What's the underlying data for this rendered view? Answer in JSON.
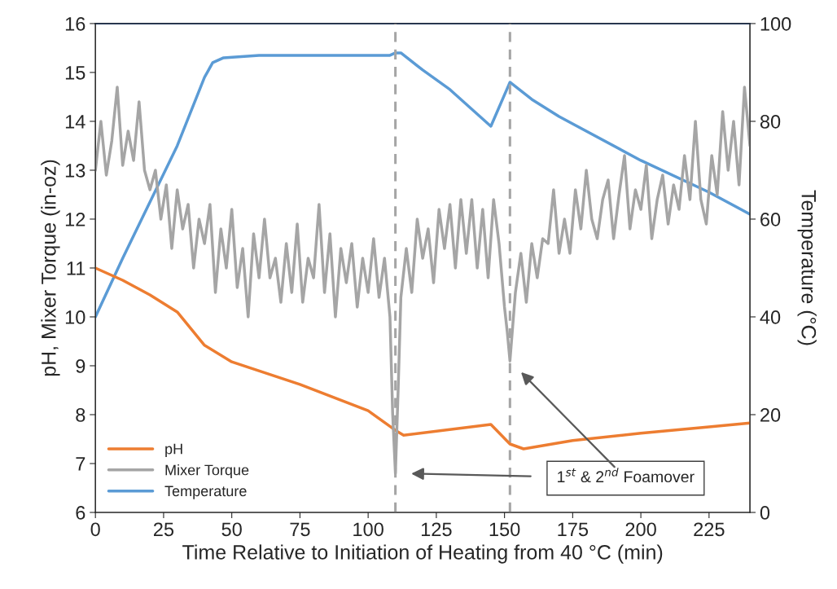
{
  "chart_data": {
    "type": "line",
    "xlabel": "Time Relative to Initiation of Heating from 40 °C (min)",
    "ylabel": "pH, Mixer Torque (in-oz)",
    "y2label": "Temperature (°C)",
    "xlim": [
      0,
      240
    ],
    "xticks": [
      0,
      25,
      50,
      75,
      100,
      125,
      150,
      175,
      200,
      225
    ],
    "ylim": [
      6,
      16
    ],
    "yticks": [
      6,
      7,
      8,
      9,
      10,
      11,
      12,
      13,
      14,
      15,
      16
    ],
    "y2lim": [
      0,
      100
    ],
    "y2ticks": [
      0,
      20,
      40,
      60,
      80,
      100
    ],
    "grid": false,
    "legend": "bottom left",
    "marker": "none",
    "line_style": "solid",
    "series": [
      {
        "name": "pH",
        "color": "#ed7d31",
        "x": [
          0,
          10,
          20,
          30,
          40,
          50,
          75,
          100,
          110,
          113,
          145,
          152,
          157,
          175,
          200,
          225,
          240
        ],
        "values": [
          11.0,
          10.75,
          10.45,
          10.1,
          9.42,
          9.08,
          8.62,
          8.08,
          7.68,
          7.58,
          7.8,
          7.4,
          7.3,
          7.47,
          7.62,
          7.75,
          7.83
        ]
      },
      {
        "name": "Mixer Torque",
        "color": "#a5a5a5",
        "x": [
          0,
          2,
          4,
          6,
          8,
          10,
          12,
          14,
          16,
          18,
          20,
          22,
          24,
          26,
          28,
          30,
          32,
          34,
          36,
          38,
          40,
          42,
          44,
          46,
          48,
          50,
          52,
          54,
          56,
          58,
          60,
          62,
          64,
          66,
          68,
          70,
          72,
          74,
          76,
          78,
          80,
          82,
          84,
          86,
          88,
          90,
          92,
          94,
          96,
          98,
          100,
          102,
          104,
          106,
          108,
          109,
          110,
          111,
          112,
          114,
          116,
          118,
          120,
          122,
          124,
          126,
          128,
          130,
          132,
          134,
          136,
          138,
          140,
          142,
          144,
          146,
          148,
          150,
          151,
          152,
          153,
          154,
          156,
          158,
          160,
          162,
          164,
          166,
          168,
          170,
          172,
          174,
          176,
          178,
          180,
          182,
          184,
          186,
          188,
          190,
          192,
          194,
          196,
          198,
          200,
          202,
          204,
          206,
          208,
          210,
          212,
          214,
          216,
          218,
          220,
          222,
          224,
          226,
          228,
          230,
          232,
          234,
          236,
          238,
          240
        ],
        "values": [
          13.0,
          14.0,
          12.9,
          13.6,
          14.7,
          13.1,
          13.8,
          13.2,
          14.4,
          13.0,
          12.6,
          13.0,
          12.0,
          12.7,
          11.4,
          12.6,
          11.8,
          12.3,
          11.0,
          12.0,
          11.5,
          12.3,
          10.5,
          11.8,
          11.0,
          12.2,
          10.6,
          11.4,
          10.0,
          11.7,
          10.8,
          12.0,
          10.8,
          11.2,
          10.3,
          11.5,
          10.5,
          11.9,
          10.3,
          11.2,
          10.8,
          12.3,
          10.5,
          11.7,
          10.0,
          11.4,
          10.7,
          11.5,
          10.2,
          11.2,
          10.5,
          11.6,
          10.4,
          11.2,
          10.0,
          8.0,
          6.8,
          8.5,
          10.4,
          11.4,
          10.5,
          12.0,
          11.2,
          11.8,
          10.7,
          12.2,
          11.4,
          12.3,
          11.0,
          12.4,
          11.3,
          12.4,
          11.0,
          12.2,
          10.8,
          12.4,
          11.5,
          10.2,
          9.7,
          9.1,
          9.8,
          10.5,
          11.3,
          10.3,
          11.5,
          10.8,
          11.6,
          11.5,
          12.6,
          11.3,
          12.0,
          11.3,
          12.6,
          11.8,
          13.0,
          12.0,
          11.6,
          12.4,
          12.8,
          11.6,
          12.5,
          13.3,
          11.8,
          12.6,
          12.2,
          13.1,
          11.6,
          12.4,
          12.9,
          11.9,
          12.7,
          12.2,
          13.3,
          12.4,
          14.0,
          12.4,
          11.9,
          13.3,
          12.5,
          14.2,
          13.0,
          14.0,
          12.7,
          14.7,
          13.5
        ]
      },
      {
        "name": "Temperature",
        "color": "#5b9bd5",
        "axis": "y2",
        "x": [
          0,
          10,
          20,
          30,
          40,
          43,
          47,
          60,
          80,
          100,
          108,
          110,
          112,
          120,
          130,
          140,
          145,
          152,
          160,
          170,
          175,
          200,
          225,
          240
        ],
        "values": [
          40,
          52,
          63.5,
          75,
          89,
          92,
          93,
          93.5,
          93.5,
          93.5,
          93.5,
          94,
          94,
          90.5,
          86.5,
          81.5,
          79,
          88,
          84.5,
          81,
          79.5,
          72,
          65.5,
          61
        ]
      }
    ],
    "ref_lines": [
      {
        "axis": "x",
        "value": 110,
        "color": "#a5a5a5",
        "line_style": "dashed"
      },
      {
        "axis": "x",
        "value": 152,
        "color": "#a5a5a5",
        "line_style": "dashed"
      }
    ],
    "annotations": [
      "1$^{st}$ & 2$^{nd}$ Foamover"
    ]
  }
}
